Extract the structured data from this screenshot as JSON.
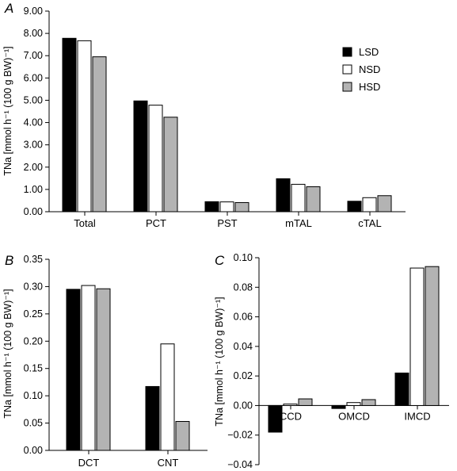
{
  "colors": {
    "LSD": "#000000",
    "NSD": "#ffffff",
    "HSD": "#b3b3b3",
    "stroke": "#000000"
  },
  "legend": [
    "LSD",
    "NSD",
    "HSD"
  ],
  "chart_data": [
    {
      "panel": "A",
      "type": "bar",
      "ylabel": "TNa [mmol h⁻¹ (100 g BW)⁻¹]",
      "ylim": [
        0,
        9
      ],
      "yticks": [
        "0.00",
        "1.00",
        "2.00",
        "3.00",
        "4.00",
        "5.00",
        "6.00",
        "7.00",
        "8.00",
        "9.00"
      ],
      "categories": [
        "Total",
        "PCT",
        "PST",
        "mTAL",
        "cTAL"
      ],
      "series": [
        {
          "name": "LSD",
          "values": [
            7.78,
            4.97,
            0.45,
            1.48,
            0.47
          ]
        },
        {
          "name": "NSD",
          "values": [
            7.67,
            4.78,
            0.44,
            1.23,
            0.63
          ]
        },
        {
          "name": "HSD",
          "values": [
            6.95,
            4.24,
            0.41,
            1.12,
            0.72
          ]
        }
      ],
      "legend_position": "top-right"
    },
    {
      "panel": "B",
      "type": "bar",
      "ylabel": "TNa [mmol h⁻¹ (100 g BW)⁻¹]",
      "ylim": [
        0,
        0.35
      ],
      "yticks": [
        "0.00",
        "0.05",
        "0.10",
        "0.15",
        "0.20",
        "0.25",
        "0.30",
        "0.35"
      ],
      "categories": [
        "DCT",
        "CNT"
      ],
      "series": [
        {
          "name": "LSD",
          "values": [
            0.295,
            0.117
          ]
        },
        {
          "name": "NSD",
          "values": [
            0.302,
            0.195
          ]
        },
        {
          "name": "HSD",
          "values": [
            0.296,
            0.053
          ]
        }
      ]
    },
    {
      "panel": "C",
      "type": "bar",
      "ylabel": "TNa [mmol h⁻¹ (100 g BW)⁻¹]",
      "ylim": [
        -0.04,
        0.1
      ],
      "yticks": [
        "−0.04",
        "−0.02",
        "0.00",
        "0.02",
        "0.04",
        "0.06",
        "0.08",
        "0.10"
      ],
      "categories": [
        "CCD",
        "OMCD",
        "IMCD"
      ],
      "series": [
        {
          "name": "LSD",
          "values": [
            -0.018,
            -0.002,
            0.022
          ]
        },
        {
          "name": "NSD",
          "values": [
            0.001,
            0.002,
            0.093
          ]
        },
        {
          "name": "HSD",
          "values": [
            0.0045,
            0.004,
            0.094
          ]
        }
      ]
    }
  ]
}
